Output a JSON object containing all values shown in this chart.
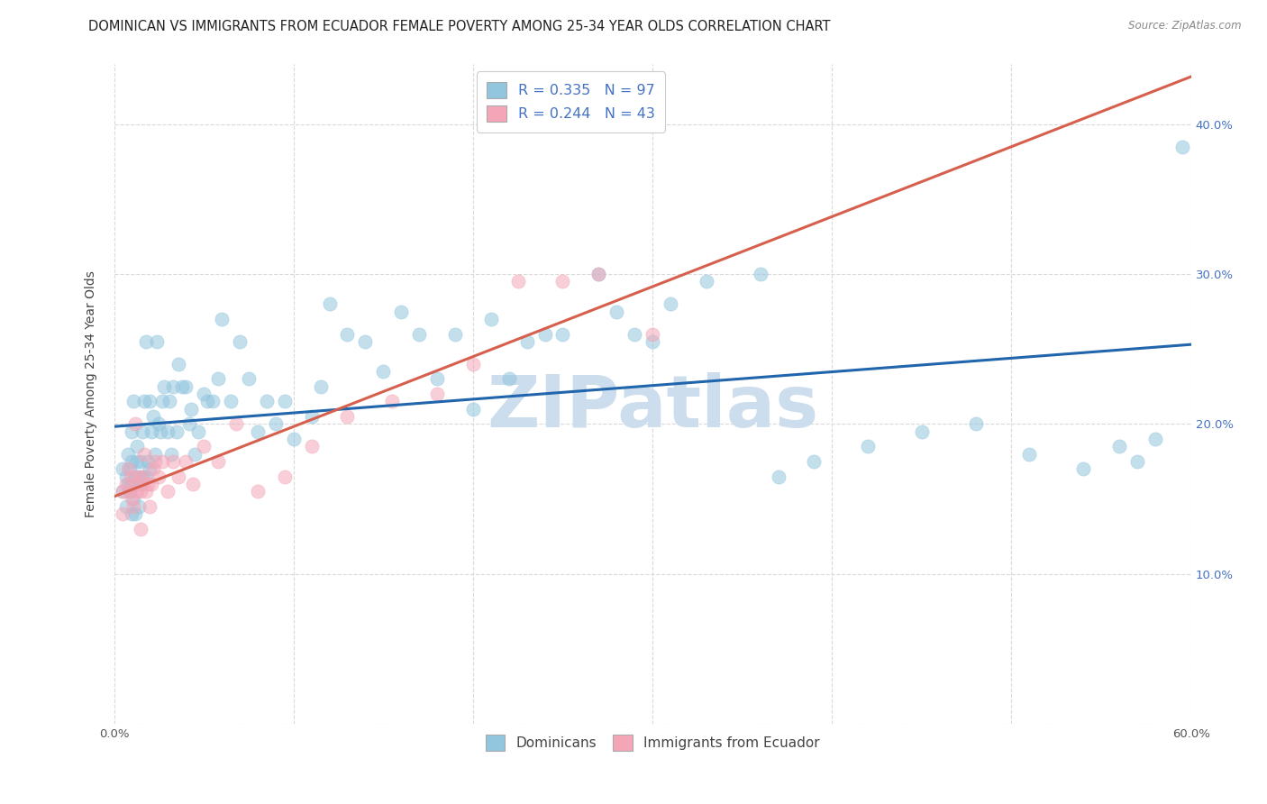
{
  "title": "DOMINICAN VS IMMIGRANTS FROM ECUADOR FEMALE POVERTY AMONG 25-34 YEAR OLDS CORRELATION CHART",
  "source": "Source: ZipAtlas.com",
  "ylabel": "Female Poverty Among 25-34 Year Olds",
  "xlim": [
    0.0,
    0.6
  ],
  "ylim": [
    0.0,
    0.44
  ],
  "xticks": [
    0.0,
    0.1,
    0.2,
    0.3,
    0.4,
    0.5,
    0.6
  ],
  "xticklabels": [
    "0.0%",
    "",
    "",
    "",
    "",
    "",
    "60.0%"
  ],
  "yticks": [
    0.0,
    0.1,
    0.2,
    0.3,
    0.4
  ],
  "yticklabels_right": [
    "",
    "10.0%",
    "20.0%",
    "30.0%",
    "40.0%"
  ],
  "legend1_label": "R = 0.335   N = 97",
  "legend2_label": "R = 0.244   N = 43",
  "color_blue": "#92c5de",
  "color_pink": "#f4a6b8",
  "line_color_blue": "#2166ac",
  "line_color_pink": "#d6604d",
  "watermark": "ZIPatlas",
  "watermark_color": "#ccdded",
  "background_color": "#ffffff",
  "grid_color": "#d9d9d9",
  "title_fontsize": 10.5,
  "axis_label_fontsize": 10,
  "tick_fontsize": 9.5,
  "blue_x": [
    0.005,
    0.005,
    0.007,
    0.007,
    0.008,
    0.008,
    0.009,
    0.009,
    0.01,
    0.01,
    0.01,
    0.01,
    0.011,
    0.011,
    0.012,
    0.012,
    0.013,
    0.013,
    0.014,
    0.014,
    0.015,
    0.015,
    0.016,
    0.016,
    0.017,
    0.018,
    0.018,
    0.019,
    0.02,
    0.02,
    0.021,
    0.022,
    0.023,
    0.024,
    0.025,
    0.026,
    0.027,
    0.028,
    0.03,
    0.031,
    0.032,
    0.033,
    0.035,
    0.036,
    0.038,
    0.04,
    0.042,
    0.043,
    0.045,
    0.047,
    0.05,
    0.052,
    0.055,
    0.058,
    0.06,
    0.065,
    0.07,
    0.075,
    0.08,
    0.085,
    0.09,
    0.095,
    0.1,
    0.11,
    0.115,
    0.12,
    0.13,
    0.14,
    0.15,
    0.16,
    0.17,
    0.18,
    0.19,
    0.2,
    0.21,
    0.22,
    0.23,
    0.24,
    0.25,
    0.27,
    0.28,
    0.29,
    0.3,
    0.31,
    0.33,
    0.36,
    0.37,
    0.39,
    0.42,
    0.45,
    0.48,
    0.51,
    0.54,
    0.56,
    0.57,
    0.58,
    0.595
  ],
  "blue_y": [
    0.155,
    0.17,
    0.145,
    0.165,
    0.16,
    0.18,
    0.155,
    0.17,
    0.14,
    0.16,
    0.175,
    0.195,
    0.15,
    0.215,
    0.14,
    0.165,
    0.175,
    0.185,
    0.145,
    0.165,
    0.16,
    0.175,
    0.165,
    0.195,
    0.215,
    0.165,
    0.255,
    0.175,
    0.17,
    0.215,
    0.195,
    0.205,
    0.18,
    0.255,
    0.2,
    0.195,
    0.215,
    0.225,
    0.195,
    0.215,
    0.18,
    0.225,
    0.195,
    0.24,
    0.225,
    0.225,
    0.2,
    0.21,
    0.18,
    0.195,
    0.22,
    0.215,
    0.215,
    0.23,
    0.27,
    0.215,
    0.255,
    0.23,
    0.195,
    0.215,
    0.2,
    0.215,
    0.19,
    0.205,
    0.225,
    0.28,
    0.26,
    0.255,
    0.235,
    0.275,
    0.26,
    0.23,
    0.26,
    0.21,
    0.27,
    0.23,
    0.255,
    0.26,
    0.26,
    0.3,
    0.275,
    0.26,
    0.255,
    0.28,
    0.295,
    0.3,
    0.165,
    0.175,
    0.185,
    0.195,
    0.2,
    0.18,
    0.17,
    0.185,
    0.175,
    0.19,
    0.385
  ],
  "pink_x": [
    0.005,
    0.005,
    0.007,
    0.008,
    0.009,
    0.01,
    0.01,
    0.011,
    0.012,
    0.012,
    0.013,
    0.014,
    0.015,
    0.015,
    0.016,
    0.017,
    0.018,
    0.019,
    0.02,
    0.021,
    0.022,
    0.023,
    0.025,
    0.027,
    0.03,
    0.033,
    0.036,
    0.04,
    0.044,
    0.05,
    0.058,
    0.068,
    0.08,
    0.095,
    0.11,
    0.13,
    0.155,
    0.18,
    0.2,
    0.225,
    0.25,
    0.27,
    0.3
  ],
  "pink_y": [
    0.14,
    0.155,
    0.16,
    0.17,
    0.155,
    0.15,
    0.165,
    0.145,
    0.16,
    0.2,
    0.155,
    0.165,
    0.13,
    0.155,
    0.165,
    0.18,
    0.155,
    0.16,
    0.145,
    0.16,
    0.17,
    0.175,
    0.165,
    0.175,
    0.155,
    0.175,
    0.165,
    0.175,
    0.16,
    0.185,
    0.175,
    0.2,
    0.155,
    0.165,
    0.185,
    0.205,
    0.215,
    0.22,
    0.24,
    0.295,
    0.295,
    0.3,
    0.26
  ]
}
